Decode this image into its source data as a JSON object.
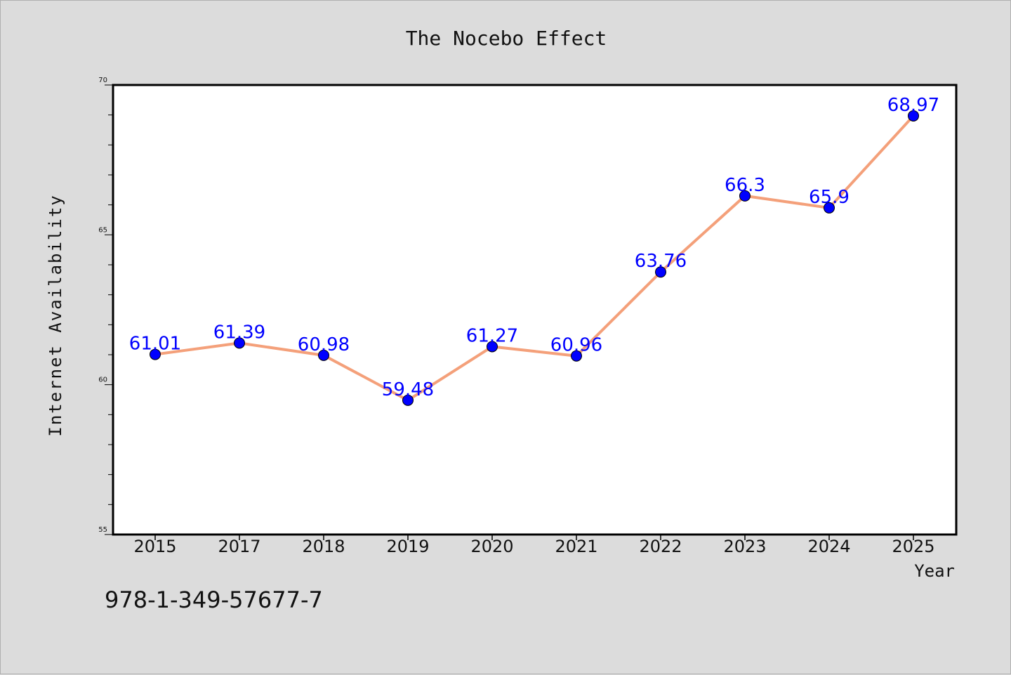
{
  "chart_data": {
    "type": "line",
    "title": "The Nocebo Effect",
    "xlabel": "Year",
    "ylabel": "Internet Availability",
    "categories": [
      "2015",
      "2017",
      "2018",
      "2019",
      "2020",
      "2021",
      "2022",
      "2023",
      "2024",
      "2025"
    ],
    "series": [
      {
        "values": [
          61.01,
          61.39,
          60.98,
          59.48,
          61.27,
          60.96,
          63.76,
          66.3,
          65.9,
          68.97
        ],
        "labels": [
          "61.01",
          "61.39",
          "60.98",
          "59.48",
          "61.27",
          "60.96",
          "63.76",
          "66.3",
          "65.9",
          "68.97"
        ],
        "line_color": "#f4a07a",
        "marker_color": "#0000ff"
      }
    ],
    "ylim": [
      55,
      70
    ],
    "yticks": [
      55,
      60,
      65,
      70
    ],
    "grid": false,
    "legend": "none",
    "annotation": "978-1-349-57677-7"
  }
}
